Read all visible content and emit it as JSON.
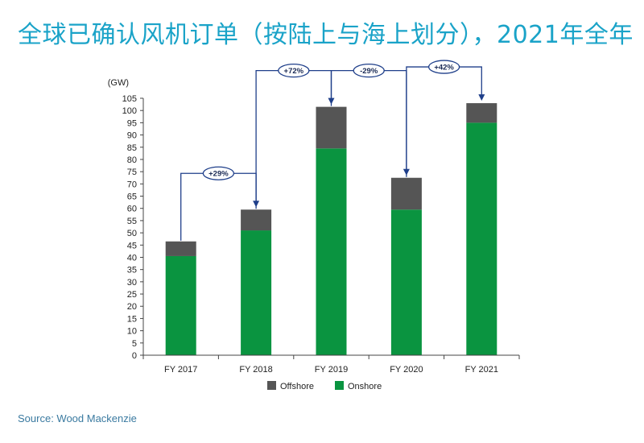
{
  "title": "全球已确认风机订单（按陆上与海上划分），2021年全年",
  "source": "Source: Wood Mackenzie",
  "colors": {
    "title": "#1aa3c8",
    "onshore": "#0a9440",
    "offshore": "#555555",
    "arrow": "#1f3f8a",
    "source": "#3a7aa0"
  },
  "chart_data": {
    "type": "bar",
    "stacked": true,
    "unit_label": "(GW)",
    "categories": [
      "FY 2017",
      "FY 2018",
      "FY 2019",
      "FY 2020",
      "FY 2021"
    ],
    "series": [
      {
        "name": "Onshore",
        "values": [
          40.5,
          51,
          84.5,
          59.5,
          95
        ]
      },
      {
        "name": "Offshore",
        "values": [
          6,
          8.5,
          17,
          13,
          8
        ]
      }
    ],
    "ylim": [
      0,
      105
    ],
    "yticks": [
      0,
      5,
      10,
      15,
      20,
      25,
      30,
      35,
      40,
      45,
      50,
      55,
      60,
      65,
      70,
      75,
      80,
      85,
      90,
      95,
      100,
      105
    ],
    "legend": [
      "Offshore",
      "Onshore"
    ],
    "legend_position": "bottom-center",
    "changes": [
      {
        "from": "FY 2017",
        "to": "FY 2018",
        "label": "+29%"
      },
      {
        "from": "FY 2018",
        "to": "FY 2019",
        "label": "+72%"
      },
      {
        "from": "FY 2019",
        "to": "FY 2020",
        "label": "-29%"
      },
      {
        "from": "FY 2020",
        "to": "FY 2021",
        "label": "+42%"
      }
    ]
  }
}
